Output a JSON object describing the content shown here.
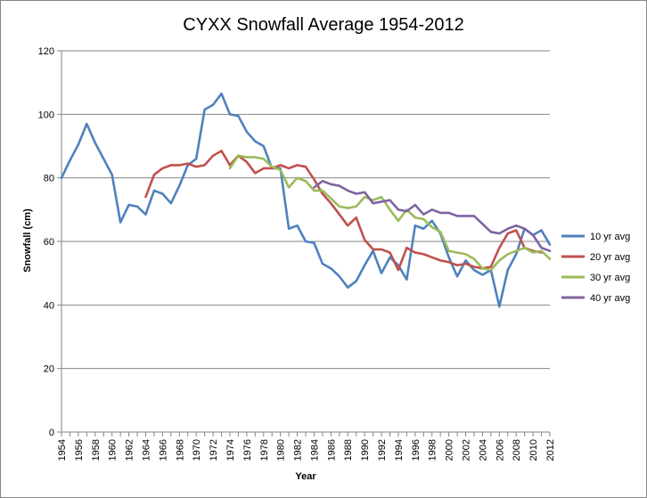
{
  "chart_data": {
    "type": "line",
    "title": "CYXX Snowfall Average 1954-2012",
    "xlabel": "Year",
    "ylabel": "Snowfall (cm)",
    "xlim": [
      1954,
      2012
    ],
    "ylim": [
      0,
      120
    ],
    "yticks": [
      0,
      20,
      40,
      60,
      80,
      100,
      120
    ],
    "xtick_labels": [
      "1954",
      "1956",
      "1958",
      "1960",
      "1962",
      "1964",
      "1966",
      "1968",
      "1970",
      "1972",
      "1974",
      "1976",
      "1978",
      "1980",
      "1982",
      "1984",
      "1986",
      "1988",
      "1990",
      "1992",
      "1994",
      "1996",
      "1998",
      "2000",
      "2002",
      "2004",
      "2006",
      "2008",
      "2010",
      "2012"
    ],
    "grid": "horizontal",
    "legend_position": "right",
    "series": [
      {
        "name": "10 yr avg",
        "color": "#4F81BD",
        "start_year": 1954,
        "values": [
          80,
          85.5,
          90.5,
          97,
          91,
          86,
          81,
          66,
          71.5,
          71,
          68.5,
          76,
          75,
          72,
          77.5,
          84,
          86,
          101.5,
          103,
          106.5,
          100,
          99.5,
          94.5,
          91.5,
          90,
          83,
          83,
          64,
          65,
          60,
          59.5,
          53,
          51.5,
          49,
          45.5,
          47.5,
          52.5,
          57,
          50,
          55,
          52.5,
          48,
          65,
          64,
          66.5,
          62.5,
          55,
          49,
          54,
          51,
          49.5,
          51,
          39.5,
          51,
          56,
          64,
          62,
          63.5,
          59
        ]
      },
      {
        "name": "20 yr avg",
        "color": "#C0504D",
        "start_year": 1964,
        "values": [
          74,
          81,
          83,
          84,
          84,
          84.5,
          83.5,
          84,
          87,
          88.5,
          84,
          87,
          85,
          81.5,
          83,
          83,
          84,
          83,
          84,
          83.5,
          79.5,
          75,
          72,
          68.5,
          65,
          67.5,
          60.5,
          57.5,
          57.5,
          56.5,
          51,
          58,
          56.5,
          56,
          55,
          54,
          53.5,
          52.5,
          53,
          52,
          51.5,
          52,
          58,
          62.5,
          63.5,
          58,
          57,
          56.5
        ]
      },
      {
        "name": "30 yr avg",
        "color": "#9BBB59",
        "start_year": 1974,
        "values": [
          83,
          87,
          86.5,
          86.5,
          86,
          83.5,
          82.5,
          77,
          80,
          79,
          76,
          76,
          73.5,
          71,
          70.5,
          71,
          74,
          73,
          74,
          70,
          66.5,
          70,
          67.5,
          67,
          64.5,
          63,
          57,
          56.5,
          56,
          54.5,
          51.5,
          51,
          54,
          56,
          57,
          58,
          56.5,
          57,
          54.5
        ]
      },
      {
        "name": "40 yr avg",
        "color": "#8064A2",
        "start_year": 1984,
        "values": [
          77,
          79,
          78,
          77.5,
          76,
          75,
          75.5,
          72,
          72.5,
          73,
          70,
          69.5,
          71.5,
          68.5,
          70,
          69,
          69,
          68,
          68,
          68,
          65.5,
          63,
          62.5,
          64,
          65,
          64,
          62,
          58,
          57
        ]
      }
    ]
  }
}
